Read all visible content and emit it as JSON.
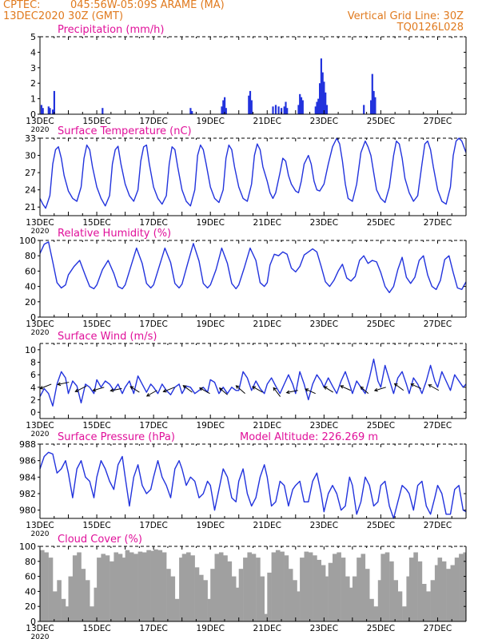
{
  "header": {
    "source": "CPTEC:",
    "location": "045:56W-05:09S   ARAME (MA)",
    "run": "13DEC2020 30Z (GMT)",
    "grid_note": "Vertical Grid Line: 30Z",
    "model_code": "TQ0126L028"
  },
  "colors": {
    "header": "#e07a1e",
    "title": "#e0109a",
    "line": "#2233dd",
    "cloud": "#a0a0a0",
    "wind_arrow": "#000000"
  },
  "x_tick_labels": [
    "13DEC",
    "15DEC",
    "17DEC",
    "19DEC",
    "21DEC",
    "23DEC",
    "25DEC",
    "27DEC"
  ],
  "x_year_label": "2020",
  "chart_data": [
    {
      "type": "bar",
      "title": "Precipitation (mm/h)",
      "x_unit": "days since 13DEC 00Z",
      "ylim": [
        0,
        5
      ],
      "yticks": [
        0,
        1,
        2,
        3,
        4,
        5
      ],
      "x": [
        0.05,
        0.1,
        0.3,
        0.35,
        0.45,
        0.5,
        2.2,
        5.3,
        5.35,
        6.4,
        6.45,
        6.5,
        6.55,
        7.35,
        7.4,
        7.45,
        8.2,
        8.3,
        8.4,
        8.5,
        8.6,
        8.65,
        8.7,
        9.1,
        9.15,
        9.2,
        9.25,
        9.7,
        9.75,
        9.8,
        9.85,
        9.9,
        9.95,
        10.0,
        10.05,
        10.1,
        11.4,
        11.65,
        11.7,
        11.75,
        11.8
      ],
      "values": [
        0.6,
        0.4,
        0.5,
        0.4,
        0.3,
        1.5,
        0.4,
        0.4,
        0.2,
        0.5,
        0.9,
        1.1,
        0.4,
        1.2,
        1.5,
        0.9,
        0.5,
        0.6,
        0.5,
        0.4,
        0.5,
        0.8,
        0.4,
        0.6,
        1.3,
        1.1,
        0.9,
        0.5,
        0.8,
        1.0,
        2.0,
        3.6,
        2.7,
        2.1,
        1.4,
        0.6,
        0.6,
        0.9,
        2.6,
        1.5,
        1.1
      ]
    },
    {
      "type": "line",
      "title": "Surface Temperature (nC)",
      "ylim": [
        19.5,
        33
      ],
      "yticks": [
        21,
        24,
        27,
        30,
        33
      ],
      "x": [
        0.0,
        0.1,
        0.2,
        0.25,
        0.35,
        0.45,
        0.55,
        0.65,
        0.75,
        0.85,
        1.0,
        1.15,
        1.3,
        1.45,
        1.55,
        1.65,
        1.75,
        1.85,
        2.0,
        2.15,
        2.3,
        2.45,
        2.55,
        2.65,
        2.75,
        2.85,
        3.0,
        3.15,
        3.3,
        3.45,
        3.55,
        3.65,
        3.75,
        3.85,
        4.0,
        4.15,
        4.3,
        4.45,
        4.55,
        4.65,
        4.75,
        4.85,
        5.0,
        5.15,
        5.3,
        5.45,
        5.55,
        5.65,
        5.75,
        5.85,
        6.0,
        6.15,
        6.3,
        6.45,
        6.55,
        6.65,
        6.75,
        6.85,
        7.0,
        7.15,
        7.3,
        7.45,
        7.55,
        7.65,
        7.75,
        7.85,
        8.0,
        8.1,
        8.2,
        8.3,
        8.45,
        8.55,
        8.65,
        8.75,
        8.85,
        9.0,
        9.1,
        9.2,
        9.3,
        9.45,
        9.55,
        9.65,
        9.75,
        9.85,
        10.0,
        10.15,
        10.3,
        10.45,
        10.55,
        10.65,
        10.75,
        10.85,
        11.0,
        11.15,
        11.3,
        11.45,
        11.55,
        11.65,
        11.75,
        11.85,
        12.0,
        12.15,
        12.3,
        12.45,
        12.55,
        12.65,
        12.75,
        12.85,
        13.0,
        13.15,
        13.3,
        13.45,
        13.55,
        13.65,
        13.75,
        13.85,
        14.0,
        14.15,
        14.3,
        14.45,
        14.55,
        14.65,
        14.75,
        14.85,
        15.0
      ],
      "values": [
        22.5,
        21.5,
        20.8,
        21.5,
        23.0,
        28.5,
        31.0,
        31.5,
        29.5,
        26.5,
        23.8,
        22.5,
        22.0,
        24.5,
        29.5,
        31.8,
        31.0,
        28.0,
        24.5,
        22.5,
        21.2,
        23.0,
        28.5,
        31.0,
        31.6,
        28.5,
        25.0,
        23.0,
        22.0,
        24.0,
        29.0,
        31.5,
        31.8,
        28.5,
        24.5,
        22.5,
        21.5,
        23.0,
        28.5,
        31.5,
        31.0,
        28.0,
        24.0,
        22.0,
        21.2,
        24.0,
        30.0,
        31.8,
        31.0,
        28.5,
        24.5,
        22.5,
        21.8,
        24.0,
        29.5,
        31.8,
        31.0,
        28.0,
        24.5,
        22.5,
        22.0,
        25.0,
        30.0,
        32.0,
        31.0,
        28.0,
        25.5,
        23.5,
        22.5,
        23.5,
        27.0,
        29.5,
        29.0,
        26.5,
        25.0,
        23.8,
        23.5,
        25.5,
        28.5,
        30.0,
        28.5,
        25.5,
        24.0,
        23.8,
        25.0,
        28.5,
        31.5,
        33.0,
        32.0,
        29.0,
        25.0,
        22.5,
        22.0,
        25.0,
        30.5,
        32.5,
        31.5,
        30.0,
        27.0,
        24.0,
        22.5,
        21.8,
        24.5,
        30.0,
        32.5,
        32.0,
        29.5,
        26.0,
        23.5,
        22.0,
        23.0,
        28.5,
        32.0,
        32.5,
        31.0,
        28.0,
        24.0,
        22.0,
        21.5,
        24.5,
        30.0,
        32.5,
        33.0,
        32.5,
        30.5
      ]
    },
    {
      "type": "line",
      "title": "Relative Humidity (%)",
      "ylim": [
        0,
        100
      ],
      "yticks": [
        0,
        20,
        40,
        60,
        80,
        100
      ],
      "x": [
        0.0,
        0.15,
        0.3,
        0.45,
        0.6,
        0.75,
        0.9,
        1.0,
        1.2,
        1.4,
        1.6,
        1.75,
        1.9,
        2.0,
        2.2,
        2.4,
        2.6,
        2.75,
        2.9,
        3.0,
        3.2,
        3.4,
        3.6,
        3.75,
        3.9,
        4.0,
        4.2,
        4.4,
        4.6,
        4.75,
        4.9,
        5.0,
        5.2,
        5.4,
        5.6,
        5.75,
        5.9,
        6.0,
        6.2,
        6.4,
        6.6,
        6.75,
        6.9,
        7.0,
        7.2,
        7.4,
        7.6,
        7.75,
        7.9,
        8.0,
        8.1,
        8.25,
        8.4,
        8.55,
        8.7,
        8.85,
        9.0,
        9.15,
        9.3,
        9.45,
        9.6,
        9.75,
        9.9,
        10.05,
        10.2,
        10.35,
        10.5,
        10.65,
        10.8,
        10.95,
        11.1,
        11.25,
        11.4,
        11.55,
        11.7,
        11.85,
        12.0,
        12.15,
        12.3,
        12.45,
        12.6,
        12.75,
        12.9,
        13.05,
        13.2,
        13.35,
        13.5,
        13.65,
        13.8,
        13.95,
        14.1,
        14.25,
        14.4,
        14.55,
        14.7,
        14.85,
        15.0
      ],
      "values": [
        83.0,
        95.0,
        98.0,
        72.0,
        45.0,
        38.0,
        42.0,
        55.0,
        66.0,
        74.0,
        54.0,
        40.0,
        37.0,
        42.0,
        62.0,
        74.0,
        57.0,
        40.0,
        37.0,
        42.0,
        66.0,
        90.0,
        70.0,
        44.0,
        38.0,
        42.0,
        66.0,
        90.0,
        71.0,
        44.0,
        38.0,
        43.0,
        70.0,
        96.0,
        73.0,
        44.0,
        38.0,
        42.0,
        62.0,
        90.0,
        70.0,
        44.0,
        37.0,
        42.0,
        65.0,
        90.0,
        74.0,
        45.0,
        40.0,
        45.0,
        68.0,
        82.0,
        80.0,
        85.0,
        82.0,
        64.0,
        59.0,
        66.0,
        81.0,
        85.0,
        89.0,
        85.0,
        66.0,
        46.0,
        40.0,
        48.0,
        60.0,
        69.0,
        51.0,
        47.0,
        53.0,
        74.0,
        80.0,
        70.0,
        74.0,
        72.0,
        58.0,
        40.0,
        32.0,
        40.0,
        62.0,
        78.0,
        52.0,
        44.0,
        52.0,
        74.0,
        80.0,
        55.0,
        40.0,
        36.0,
        48.0,
        75.0,
        80.0,
        58.0,
        38.0,
        36.0,
        46.0
      ]
    },
    {
      "type": "line",
      "title": "Surface Wind (m/s)",
      "ylim": [
        -1,
        11
      ],
      "yticks": [
        0,
        2,
        4,
        6,
        8,
        10
      ],
      "x": [
        0.0,
        0.15,
        0.3,
        0.45,
        0.6,
        0.75,
        0.9,
        1.0,
        1.15,
        1.3,
        1.45,
        1.6,
        1.75,
        1.9,
        2.0,
        2.15,
        2.3,
        2.45,
        2.6,
        2.75,
        2.9,
        3.0,
        3.15,
        3.3,
        3.45,
        3.6,
        3.75,
        3.9,
        4.0,
        4.15,
        4.3,
        4.45,
        4.6,
        4.75,
        4.9,
        5.0,
        5.15,
        5.3,
        5.45,
        5.6,
        5.75,
        5.9,
        6.0,
        6.15,
        6.3,
        6.45,
        6.6,
        6.75,
        6.9,
        7.0,
        7.15,
        7.3,
        7.45,
        7.6,
        7.75,
        7.9,
        8.0,
        8.15,
        8.3,
        8.45,
        8.6,
        8.75,
        8.9,
        9.0,
        9.15,
        9.3,
        9.45,
        9.6,
        9.75,
        9.9,
        10.0,
        10.15,
        10.3,
        10.45,
        10.6,
        10.75,
        10.9,
        11.0,
        11.15,
        11.3,
        11.45,
        11.6,
        11.75,
        11.9,
        12.0,
        12.15,
        12.3,
        12.45,
        12.6,
        12.75,
        12.9,
        13.0,
        13.15,
        13.3,
        13.45,
        13.6,
        13.75,
        13.9,
        14.0,
        14.15,
        14.3,
        14.45,
        14.6,
        14.75,
        14.9,
        15.0
      ],
      "values": [
        2.5,
        3.8,
        3.0,
        1.0,
        4.5,
        6.5,
        5.5,
        3.0,
        5.0,
        4.2,
        1.5,
        4.5,
        4.0,
        3.0,
        5.2,
        4.0,
        5.0,
        4.5,
        3.5,
        4.5,
        3.0,
        4.0,
        5.0,
        3.0,
        5.8,
        4.5,
        3.2,
        4.5,
        4.0,
        3.0,
        4.5,
        3.5,
        2.8,
        4.0,
        4.5,
        3.0,
        4.2,
        4.0,
        3.0,
        3.5,
        4.0,
        3.2,
        5.2,
        4.8,
        3.0,
        4.0,
        3.0,
        4.0,
        3.5,
        3.5,
        6.5,
        5.5,
        3.5,
        5.0,
        3.8,
        3.0,
        4.5,
        5.5,
        4.2,
        3.0,
        4.5,
        6.0,
        4.5,
        3.0,
        6.5,
        4.5,
        2.0,
        4.5,
        6.0,
        5.0,
        4.0,
        5.5,
        4.2,
        3.0,
        5.0,
        6.5,
        4.5,
        3.0,
        5.0,
        4.0,
        3.0,
        5.5,
        8.5,
        5.0,
        4.0,
        7.5,
        5.2,
        3.0,
        5.5,
        6.5,
        4.5,
        3.0,
        5.5,
        4.5,
        3.0,
        5.0,
        7.5,
        5.0,
        4.0,
        6.5,
        5.0,
        3.5,
        6.0,
        5.0,
        4.0,
        4.5
      ]
    },
    {
      "type": "line",
      "title": "Surface Pressure (hPa)",
      "annotation": "Model Altitude: 226.269  m",
      "ylim": [
        979,
        988
      ],
      "yticks": [
        980,
        982,
        984,
        986,
        988
      ],
      "x": [
        0.0,
        0.15,
        0.3,
        0.45,
        0.6,
        0.75,
        0.9,
        1.0,
        1.15,
        1.3,
        1.45,
        1.6,
        1.75,
        1.9,
        2.0,
        2.15,
        2.3,
        2.45,
        2.6,
        2.75,
        2.9,
        3.0,
        3.15,
        3.3,
        3.45,
        3.6,
        3.75,
        3.9,
        4.0,
        4.15,
        4.3,
        4.45,
        4.6,
        4.75,
        4.9,
        5.0,
        5.15,
        5.3,
        5.45,
        5.6,
        5.75,
        5.9,
        6.0,
        6.15,
        6.3,
        6.45,
        6.6,
        6.75,
        6.9,
        7.0,
        7.15,
        7.3,
        7.45,
        7.6,
        7.75,
        7.9,
        8.0,
        8.15,
        8.3,
        8.45,
        8.6,
        8.75,
        8.9,
        9.0,
        9.15,
        9.3,
        9.45,
        9.6,
        9.75,
        9.9,
        10.0,
        10.15,
        10.3,
        10.45,
        10.6,
        10.75,
        10.9,
        11.0,
        11.15,
        11.3,
        11.45,
        11.6,
        11.75,
        11.9,
        12.0,
        12.15,
        12.3,
        12.45,
        12.6,
        12.75,
        12.9,
        13.0,
        13.15,
        13.3,
        13.45,
        13.6,
        13.75,
        13.9,
        14.0,
        14.15,
        14.3,
        14.45,
        14.6,
        14.75,
        14.9,
        15.0
      ],
      "values": [
        985.0,
        986.5,
        987.0,
        986.8,
        984.5,
        985.0,
        986.0,
        984.5,
        981.5,
        985.0,
        986.0,
        984.0,
        983.5,
        981.5,
        984.0,
        986.0,
        985.0,
        983.5,
        982.5,
        985.5,
        986.5,
        984.0,
        980.5,
        984.0,
        985.5,
        983.0,
        982.0,
        982.5,
        984.0,
        986.0,
        984.0,
        983.0,
        981.5,
        985.0,
        986.0,
        985.0,
        983.0,
        984.0,
        983.5,
        981.5,
        982.0,
        983.5,
        983.0,
        980.0,
        982.5,
        985.0,
        984.0,
        981.5,
        981.0,
        983.5,
        985.0,
        982.0,
        980.5,
        981.5,
        984.0,
        985.5,
        984.0,
        980.5,
        981.0,
        983.5,
        983.0,
        980.5,
        982.5,
        983.0,
        983.5,
        981.0,
        981.0,
        983.5,
        984.5,
        982.0,
        979.8,
        982.0,
        983.0,
        982.0,
        980.0,
        980.5,
        984.0,
        983.0,
        979.5,
        981.0,
        984.0,
        983.0,
        980.5,
        981.0,
        983.0,
        983.5,
        980.5,
        979.0,
        981.0,
        983.0,
        982.5,
        982.0,
        980.0,
        983.0,
        983.5,
        980.5,
        979.5,
        981.5,
        983.0,
        982.0,
        979.5,
        979.5,
        982.5,
        983.0,
        980.0,
        979.8
      ]
    },
    {
      "type": "area",
      "title": "Cloud Cover (%)",
      "ylim": [
        0,
        100
      ],
      "yticks": [
        0,
        20,
        40,
        60,
        80,
        100
      ],
      "x": [
        0.0,
        0.15,
        0.3,
        0.45,
        0.6,
        0.75,
        0.9,
        1.0,
        1.15,
        1.3,
        1.45,
        1.6,
        1.75,
        1.9,
        2.0,
        2.15,
        2.3,
        2.45,
        2.6,
        2.75,
        2.9,
        3.0,
        3.15,
        3.3,
        3.45,
        3.6,
        3.75,
        3.9,
        4.0,
        4.15,
        4.3,
        4.45,
        4.6,
        4.75,
        4.9,
        5.0,
        5.15,
        5.3,
        5.45,
        5.6,
        5.75,
        5.9,
        6.0,
        6.15,
        6.3,
        6.45,
        6.6,
        6.75,
        6.9,
        7.0,
        7.15,
        7.3,
        7.45,
        7.6,
        7.75,
        7.9,
        8.0,
        8.15,
        8.3,
        8.45,
        8.6,
        8.75,
        8.9,
        9.0,
        9.15,
        9.3,
        9.45,
        9.6,
        9.75,
        9.9,
        10.0,
        10.15,
        10.3,
        10.45,
        10.6,
        10.75,
        10.9,
        11.0,
        11.15,
        11.3,
        11.45,
        11.6,
        11.75,
        11.9,
        12.0,
        12.15,
        12.3,
        12.45,
        12.6,
        12.75,
        12.9,
        13.0,
        13.15,
        13.3,
        13.45,
        13.6,
        13.75,
        13.9,
        14.0,
        14.15,
        14.3,
        14.45,
        14.6,
        14.75,
        14.9,
        15.0
      ],
      "values": [
        95.0,
        92.0,
        85.0,
        40.0,
        55.0,
        30.0,
        20.0,
        60.0,
        88.0,
        92.0,
        70.0,
        55.0,
        20.0,
        45.0,
        85.0,
        90.0,
        88.0,
        80.0,
        92.0,
        90.0,
        85.0,
        95.0,
        92.0,
        90.0,
        93.0,
        92.0,
        95.0,
        94.0,
        96.0,
        95.0,
        92.0,
        70.0,
        60.0,
        30.0,
        85.0,
        90.0,
        92.0,
        88.0,
        72.0,
        62.0,
        55.0,
        30.0,
        70.0,
        90.0,
        92.0,
        88.0,
        80.0,
        60.0,
        45.0,
        70.0,
        85.0,
        92.0,
        90.0,
        85.0,
        60.0,
        10.0,
        65.0,
        92.0,
        95.0,
        93.0,
        88.0,
        70.0,
        55.0,
        40.0,
        85.0,
        93.0,
        92.0,
        88.0,
        82.0,
        75.0,
        60.0,
        78.0,
        90.0,
        92.0,
        85.0,
        60.0,
        45.0,
        60.0,
        85.0,
        90.0,
        70.0,
        30.0,
        20.0,
        55.0,
        90.0,
        92.0,
        80.0,
        55.0,
        40.0,
        20.0,
        60.0,
        85.0,
        92.0,
        80.0,
        50.0,
        40.0,
        55.0,
        75.0,
        85.0,
        80.0,
        70.0,
        75.0,
        85.0,
        90.0,
        92.0,
        92.0
      ]
    }
  ]
}
